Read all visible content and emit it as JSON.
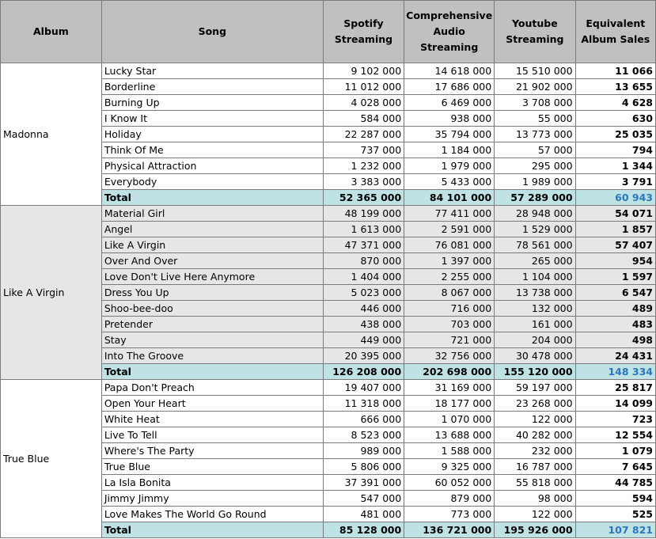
{
  "headers": {
    "album": "Album",
    "song": "Song",
    "spotify": "Spotify Streaming",
    "audio": "Comprehensive Audio Streaming",
    "youtube": "Youtube Streaming",
    "eas": "Equivalent Album Sales"
  },
  "albums": [
    {
      "name": "Madonna",
      "rows": [
        [
          "Lucky Star",
          "9 102 000",
          "14 618 000",
          "15 510 000",
          "11 066"
        ],
        [
          "Borderline",
          "11 012 000",
          "17 686 000",
          "21 902 000",
          "13 655"
        ],
        [
          "Burning Up",
          "4 028 000",
          "6 469 000",
          "3 708 000",
          "4 628"
        ],
        [
          "I Know It",
          "584 000",
          "938 000",
          "55 000",
          "630"
        ],
        [
          "Holiday",
          "22 287 000",
          "35 794 000",
          "13 773 000",
          "25 035"
        ],
        [
          "Think Of Me",
          "737 000",
          "1 184 000",
          "57 000",
          "794"
        ],
        [
          "Physical Attraction",
          "1 232 000",
          "1 979 000",
          "295 000",
          "1 344"
        ],
        [
          "Everybody",
          "3 383 000",
          "5 433 000",
          "1 989 000",
          "3 791"
        ]
      ],
      "total": [
        "Total",
        "52 365 000",
        "84 101 000",
        "57 289 000",
        "60 943"
      ]
    },
    {
      "name": "Like A Virgin",
      "rows": [
        [
          "Material Girl",
          "48 199 000",
          "77 411 000",
          "28 948 000",
          "54 071"
        ],
        [
          "Angel",
          "1 613 000",
          "2 591 000",
          "1 529 000",
          "1 857"
        ],
        [
          "Like A Virgin",
          "47 371 000",
          "76 081 000",
          "78 561 000",
          "57 407"
        ],
        [
          "Over And Over",
          "870 000",
          "1 397 000",
          "265 000",
          "954"
        ],
        [
          "Love Don't Live Here Anymore",
          "1 404 000",
          "2 255 000",
          "1 104 000",
          "1 597"
        ],
        [
          "Dress You Up",
          "5 023 000",
          "8 067 000",
          "13 738 000",
          "6 547"
        ],
        [
          "Shoo-bee-doo",
          "446 000",
          "716 000",
          "132 000",
          "489"
        ],
        [
          "Pretender",
          "438 000",
          "703 000",
          "161 000",
          "483"
        ],
        [
          "Stay",
          "449 000",
          "721 000",
          "204 000",
          "498"
        ],
        [
          "Into The Groove",
          "20 395 000",
          "32 756 000",
          "30 478 000",
          "24 431"
        ]
      ],
      "total": [
        "Total",
        "126 208 000",
        "202 698 000",
        "155 120 000",
        "148 334"
      ]
    },
    {
      "name": "True Blue",
      "rows": [
        [
          "Papa Don't Preach",
          "19 407 000",
          "31 169 000",
          "59 197 000",
          "25 817"
        ],
        [
          "Open Your Heart",
          "11 318 000",
          "18 177 000",
          "23 268 000",
          "14 099"
        ],
        [
          "White Heat",
          "666 000",
          "1 070 000",
          "122 000",
          "723"
        ],
        [
          "Live To Tell",
          "8 523 000",
          "13 688 000",
          "40 282 000",
          "12 554"
        ],
        [
          "Where's The Party",
          "989 000",
          "1 588 000",
          "232 000",
          "1 079"
        ],
        [
          "True Blue",
          "5 806 000",
          "9 325 000",
          "16 787 000",
          "7 645"
        ],
        [
          "La Isla Bonita",
          "37 391 000",
          "60 052 000",
          "55 818 000",
          "44 785"
        ],
        [
          "Jimmy Jimmy",
          "547 000",
          "879 000",
          "98 000",
          "594"
        ],
        [
          "Love Makes The World Go Round",
          "481 000",
          "773 000",
          "122 000",
          "525"
        ]
      ],
      "total": [
        "Total",
        "85 128 000",
        "136 721 000",
        "195 926 000",
        "107 821"
      ]
    }
  ],
  "colors": {
    "header_bg": "#c0c0c0",
    "grey_block_bg": "#e6e6e6",
    "total_bg": "#bfe3e4",
    "total_eas_text": "#2a77bb",
    "border": "#7a7a7a"
  }
}
